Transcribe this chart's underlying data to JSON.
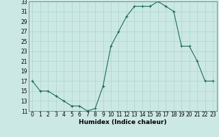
{
  "x": [
    0,
    1,
    2,
    3,
    4,
    5,
    6,
    7,
    8,
    9,
    10,
    11,
    12,
    13,
    14,
    15,
    16,
    17,
    18,
    19,
    20,
    21,
    22,
    23
  ],
  "y": [
    17,
    15,
    15,
    14,
    13,
    12,
    12,
    11,
    11.5,
    16,
    24,
    27,
    30,
    32,
    32,
    32,
    33,
    32,
    31,
    24,
    24,
    21,
    17,
    17
  ],
  "line_color": "#1a6b5a",
  "marker": "+",
  "marker_size": 3,
  "bg_color": "#cce8e4",
  "grid_color": "#aad4ce",
  "xlabel": "Humidex (Indice chaleur)",
  "ylim": [
    11,
    33
  ],
  "xlim": [
    -0.5,
    23.5
  ],
  "yticks": [
    11,
    13,
    15,
    17,
    19,
    21,
    23,
    25,
    27,
    29,
    31,
    33
  ],
  "xticks": [
    0,
    1,
    2,
    3,
    4,
    5,
    6,
    7,
    8,
    9,
    10,
    11,
    12,
    13,
    14,
    15,
    16,
    17,
    18,
    19,
    20,
    21,
    22,
    23
  ],
  "tick_font_size": 5.5,
  "xlabel_font_size": 6.5
}
